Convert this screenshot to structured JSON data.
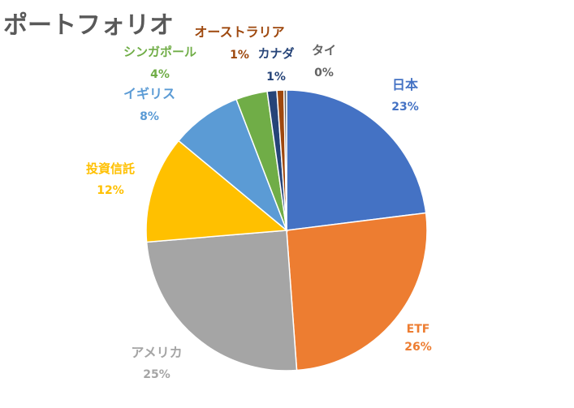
{
  "chart_data": {
    "type": "pie",
    "title": "ポートフォリオ",
    "categories": [
      "日本",
      "ETF",
      "アメリカ",
      "投資信託",
      "イギリス",
      "シンガポール",
      "カナダ",
      "オーストラリア",
      "タイ"
    ],
    "values": [
      23,
      26,
      25,
      12,
      8,
      4,
      1,
      1,
      0
    ],
    "value_labels": [
      "23%",
      "26%",
      "25%",
      "12%",
      "8%",
      "4%",
      "1%",
      "1%",
      "0%"
    ],
    "exact_values": [
      22.9,
      25.7,
      24.7,
      12.3,
      8.1,
      3.6,
      1.1,
      0.8,
      0.3
    ],
    "colors": [
      "#4472c4",
      "#ed7d31",
      "#a5a5a5",
      "#ffc000",
      "#5b9bd5",
      "#70ad47",
      "#264478",
      "#9e480e",
      "#636363"
    ],
    "label_colors": [
      "#4472c4",
      "#ed7d31",
      "#a5a5a5",
      "#ffc000",
      "#5b9bd5",
      "#70ad47",
      "#264478",
      "#9e480e",
      "#636363"
    ],
    "start_angle_deg": 0,
    "direction": "clockwise",
    "legend": "none",
    "labels": "outside, category above percentage"
  }
}
